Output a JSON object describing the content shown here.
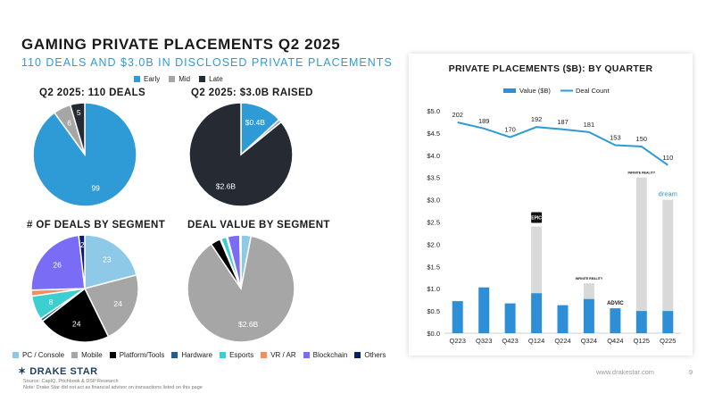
{
  "header": {
    "title": "GAMING PRIVATE PLACEMENTS Q2 2025",
    "subtitle": "110 DEALS AND $3.0B IN DISCLOSED PRIVATE PLACEMENTS"
  },
  "stage_legend": [
    {
      "label": "Early",
      "color": "#2e9bd6"
    },
    {
      "label": "Mid",
      "color": "#a6a6a6"
    },
    {
      "label": "Late",
      "color": "#262b33"
    }
  ],
  "segment_legend": [
    {
      "label": "PC / Console",
      "color": "#8ec9e8"
    },
    {
      "label": "Mobile",
      "color": "#a6a6a6"
    },
    {
      "label": "Platform/Tools",
      "color": "#000000"
    },
    {
      "label": "Hardware",
      "color": "#1f5f8b"
    },
    {
      "label": "Esports",
      "color": "#3dcfcf"
    },
    {
      "label": "VR / AR",
      "color": "#f28e5c"
    },
    {
      "label": "Blockchain",
      "color": "#7b6cf6"
    },
    {
      "label": "Others",
      "color": "#0b1f66"
    }
  ],
  "chart_data": [
    {
      "type": "pie",
      "title": "Q2 2025: 110 DEALS",
      "slices": [
        {
          "label": "Early",
          "value": 99,
          "display": "99",
          "color": "#2e9bd6",
          "text_color": "#ffffff"
        },
        {
          "label": "Mid",
          "value": 6,
          "display": "6",
          "color": "#a6a6a6",
          "text_color": "#ffffff"
        },
        {
          "label": "Late",
          "value": 5,
          "display": "5",
          "color": "#262b33",
          "text_color": "#ffffff"
        }
      ]
    },
    {
      "type": "pie",
      "title": "Q2 2025: $3.0B RAISED",
      "slices": [
        {
          "label": "Early",
          "value": 0.4,
          "display": "$0.4B",
          "color": "#2e9bd6",
          "text_color": "#ffffff"
        },
        {
          "label": "Mid",
          "value": 0.03,
          "display": "",
          "color": "#a6a6a6",
          "text_color": "#ffffff"
        },
        {
          "label": "Late",
          "value": 2.6,
          "display": "$2.6B",
          "color": "#262b33",
          "text_color": "#ffffff"
        }
      ]
    },
    {
      "type": "pie",
      "title": "# OF DEALS BY SEGMENT",
      "slices": [
        {
          "label": "PC / Console",
          "value": 23,
          "display": "23",
          "color": "#8ec9e8",
          "text_color": "#ffffff"
        },
        {
          "label": "Mobile",
          "value": 24,
          "display": "24",
          "color": "#a6a6a6",
          "text_color": "#ffffff"
        },
        {
          "label": "Platform/Tools",
          "value": 24,
          "display": "24",
          "color": "#000000",
          "text_color": "#ffffff"
        },
        {
          "label": "Hardware",
          "value": 1,
          "display": "",
          "color": "#1f5f8b",
          "text_color": "#ffffff"
        },
        {
          "label": "Esports",
          "value": 8,
          "display": "8",
          "color": "#3dcfcf",
          "text_color": "#ffffff"
        },
        {
          "label": "VR / AR",
          "value": 2,
          "display": "",
          "color": "#f28e5c",
          "text_color": "#ffffff"
        },
        {
          "label": "Blockchain",
          "value": 26,
          "display": "26",
          "color": "#7b6cf6",
          "text_color": "#ffffff"
        },
        {
          "label": "Others",
          "value": 2,
          "display": "2",
          "color": "#0b1f66",
          "text_color": "#ffffff"
        }
      ]
    },
    {
      "type": "pie",
      "title": "DEAL VALUE BY SEGMENT",
      "slices": [
        {
          "label": "PC / Console",
          "value": 0.09,
          "display": "",
          "color": "#8ec9e8",
          "text_color": "#ffffff"
        },
        {
          "label": "Mobile",
          "value": 2.6,
          "display": "$2.6B",
          "color": "#a6a6a6",
          "text_color": "#ffffff"
        },
        {
          "label": "Platform/Tools",
          "value": 0.09,
          "display": "",
          "color": "#000000",
          "text_color": "#ffffff"
        },
        {
          "label": "Hardware",
          "value": 0.01,
          "display": "",
          "color": "#1f5f8b",
          "text_color": "#ffffff"
        },
        {
          "label": "Esports",
          "value": 0.05,
          "display": "",
          "color": "#3dcfcf",
          "text_color": "#ffffff"
        },
        {
          "label": "VR / AR",
          "value": 0.01,
          "display": "",
          "color": "#f28e5c",
          "text_color": "#ffffff"
        },
        {
          "label": "Blockchain",
          "value": 0.11,
          "display": "",
          "color": "#7b6cf6",
          "text_color": "#ffffff"
        },
        {
          "label": "Others",
          "value": 0.01,
          "display": "",
          "color": "#0b1f66",
          "text_color": "#ffffff"
        }
      ]
    },
    {
      "type": "bar",
      "title": "PRIVATE PLACEMENTS ($B): BY QUARTER",
      "categories": [
        "Q223",
        "Q323",
        "Q423",
        "Q124",
        "Q224",
        "Q324",
        "Q424",
        "Q125",
        "Q225"
      ],
      "series": [
        {
          "name": "Value ($B)",
          "type": "bar",
          "color": "#2e8fd6",
          "values": [
            0.72,
            1.03,
            0.67,
            0.9,
            0.63,
            0.77,
            0.56,
            0.5,
            0.5
          ]
        },
        {
          "type": "bar-stacked",
          "color": "#d9d9d9",
          "values": [
            0,
            0,
            0,
            1.5,
            0,
            0.35,
            0,
            3.0,
            2.5
          ]
        },
        {
          "name": "Deal Count",
          "type": "line",
          "color": "#2e9bd6",
          "values": [
            202,
            189,
            170,
            192,
            187,
            181,
            153,
            150,
            110
          ]
        }
      ],
      "ylim": [
        0,
        5
      ],
      "yticks": [
        "$0.0",
        "$0.5",
        "$1.0",
        "$1.5",
        "$2.0",
        "$2.5",
        "$3.0",
        "$3.5",
        "$4.0",
        "$4.5",
        "$5.0"
      ],
      "legend": "top",
      "annotations": [
        {
          "category": "Q124",
          "label": "EPIC"
        },
        {
          "category": "Q324",
          "label": "INFINITE REALITY"
        },
        {
          "category": "Q424",
          "label": "ADVIC"
        },
        {
          "category": "Q125",
          "label": "INFINITE REALITY"
        },
        {
          "category": "Q225",
          "label": "dream"
        }
      ]
    }
  ],
  "footer": {
    "logo": "DRAKE STAR",
    "source_line1": "Source: CapIQ, Pitchbook & DSP Research",
    "source_line2": "Note: Drake Star did not act as financial advisor on transactions listed on this page",
    "website": "www.drakestar.com",
    "page": "9"
  }
}
